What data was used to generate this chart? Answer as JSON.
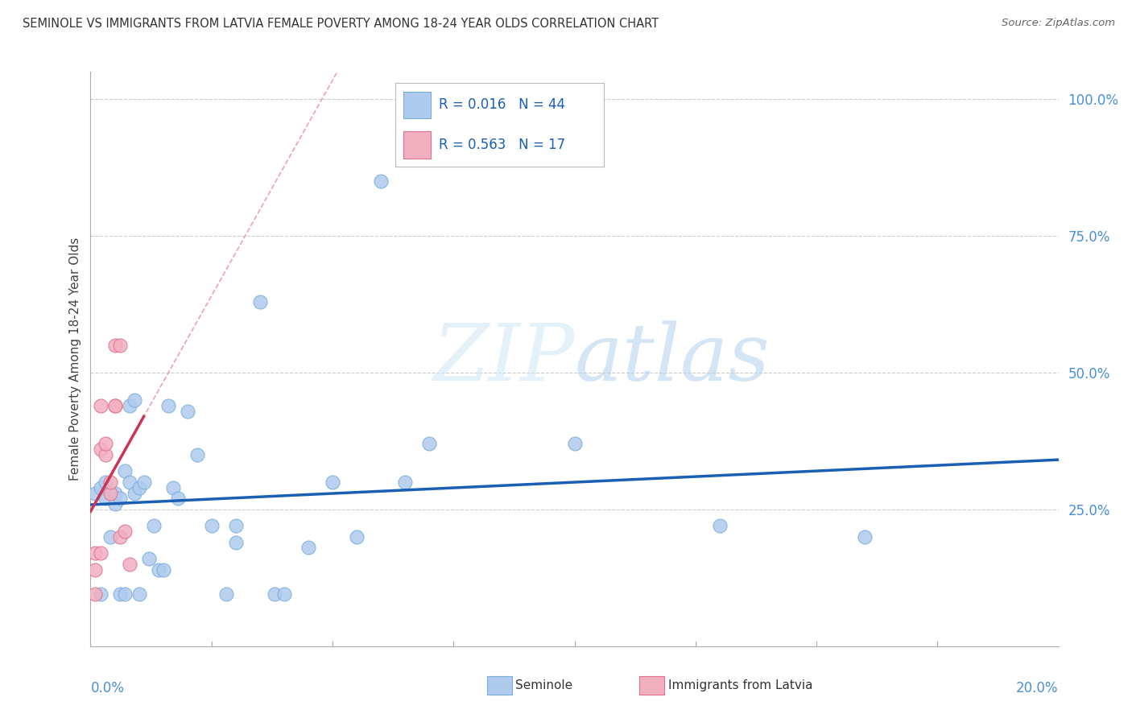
{
  "title": "SEMINOLE VS IMMIGRANTS FROM LATVIA FEMALE POVERTY AMONG 18-24 YEAR OLDS CORRELATION CHART",
  "source": "Source: ZipAtlas.com",
  "ylabel": "Female Poverty Among 18-24 Year Olds",
  "watermark": "ZIPatlas",
  "legend_r1": "R = 0.016",
  "legend_n1": "N = 44",
  "legend_r2": "R = 0.563",
  "legend_n2": "N = 17",
  "seminole_color": "#aecbee",
  "seminole_edge": "#7badd9",
  "latvia_color": "#f2afc0",
  "latvia_edge": "#e07090",
  "trendline_blue": "#1a5fb4",
  "trendline_pink": "#cc3355",
  "diag_color": "#f0a0b5",
  "background_color": "#ffffff",
  "xlim": [
    0,
    0.2
  ],
  "ylim": [
    0,
    1.05
  ],
  "yticks": [
    0.25,
    0.5,
    0.75,
    1.0
  ],
  "ytick_labels": [
    "25.0%",
    "50.0%",
    "75.0%",
    "100.0%"
  ],
  "seminole_x": [
    0.001,
    0.002,
    0.002,
    0.003,
    0.003,
    0.004,
    0.005,
    0.005,
    0.006,
    0.006,
    0.007,
    0.007,
    0.008,
    0.008,
    0.009,
    0.009,
    0.01,
    0.01,
    0.011,
    0.012,
    0.013,
    0.014,
    0.015,
    0.016,
    0.017,
    0.018,
    0.02,
    0.022,
    0.025,
    0.028,
    0.03,
    0.03,
    0.035,
    0.038,
    0.04,
    0.045,
    0.05,
    0.055,
    0.06,
    0.065,
    0.07,
    0.1,
    0.13,
    0.16
  ],
  "seminole_y": [
    0.28,
    0.29,
    0.095,
    0.27,
    0.3,
    0.2,
    0.26,
    0.28,
    0.27,
    0.095,
    0.32,
    0.095,
    0.3,
    0.44,
    0.45,
    0.28,
    0.095,
    0.29,
    0.3,
    0.16,
    0.22,
    0.14,
    0.14,
    0.44,
    0.29,
    0.27,
    0.43,
    0.35,
    0.22,
    0.095,
    0.22,
    0.19,
    0.63,
    0.095,
    0.095,
    0.18,
    0.3,
    0.2,
    0.85,
    0.3,
    0.37,
    0.37,
    0.22,
    0.2
  ],
  "latvia_x": [
    0.001,
    0.001,
    0.001,
    0.002,
    0.002,
    0.002,
    0.003,
    0.003,
    0.004,
    0.004,
    0.005,
    0.005,
    0.005,
    0.006,
    0.006,
    0.007,
    0.008
  ],
  "latvia_y": [
    0.095,
    0.14,
    0.17,
    0.36,
    0.44,
    0.17,
    0.35,
    0.37,
    0.28,
    0.3,
    0.44,
    0.44,
    0.55,
    0.55,
    0.2,
    0.21,
    0.15
  ]
}
